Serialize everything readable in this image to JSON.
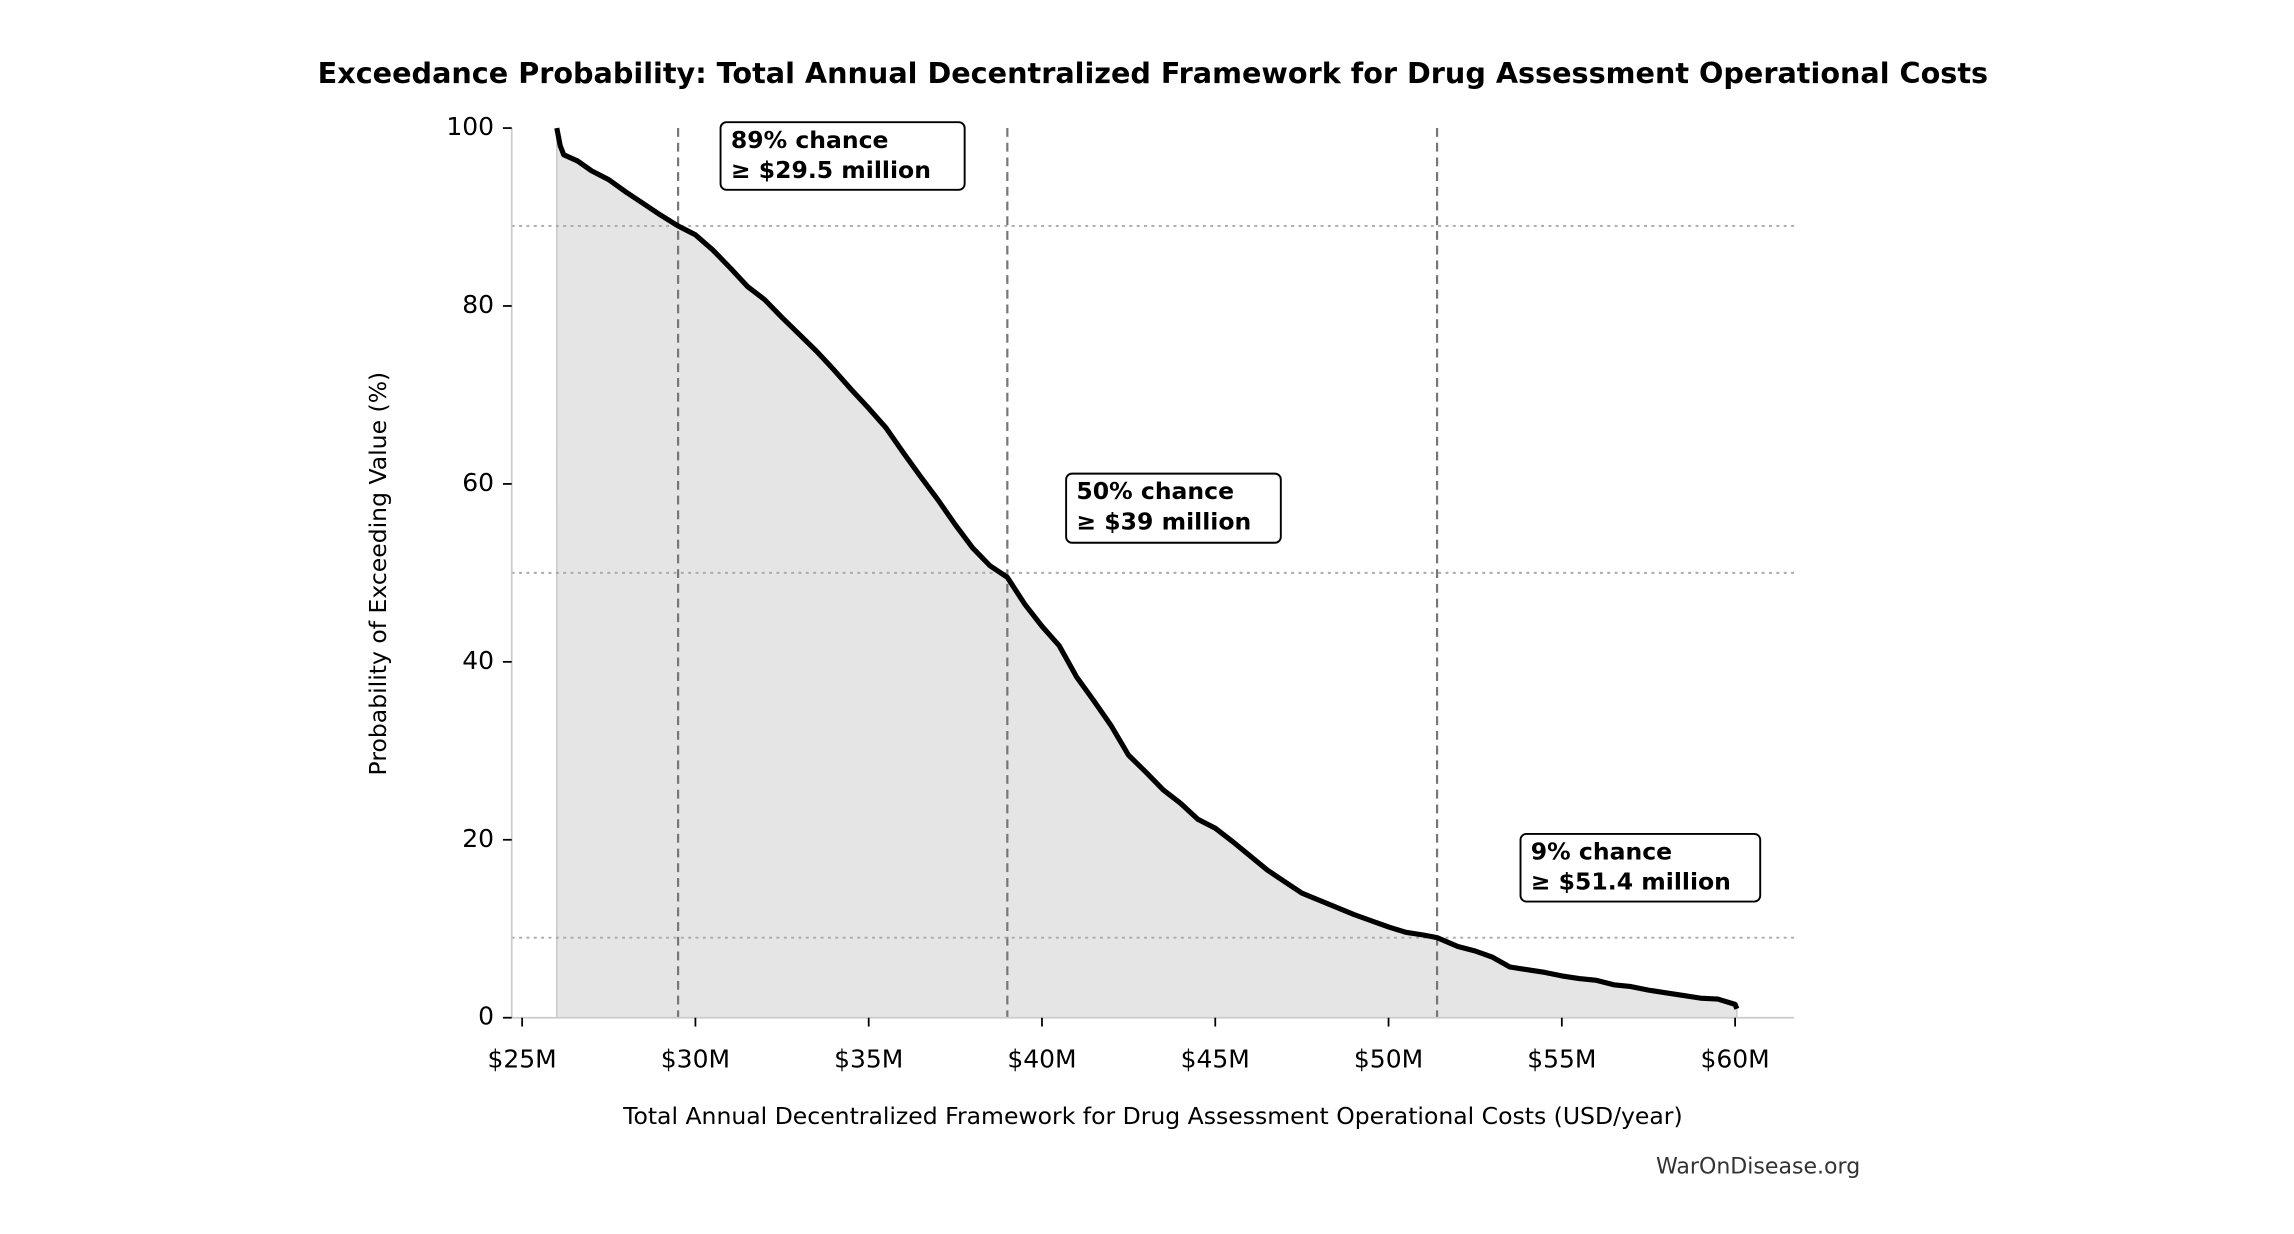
{
  "chart_data": {
    "type": "area-line",
    "title": "Exceedance Probability: Total Annual Decentralized Framework for Drug Assessment Operational Costs",
    "x_label": "Total Annual Decentralized Framework for Drug Assessment Operational Costs (USD/year)",
    "y_label": "Probability of Exceeding Value (%)",
    "source": "WarOnDisease.org",
    "color": "#000000",
    "fill_color": "#e5e5e5",
    "xlim": [
      24700000,
      61700000
    ],
    "ylim": [
      0,
      100
    ],
    "xticks": [
      {
        "value": 25000000,
        "label": "$25M"
      },
      {
        "value": 30000000,
        "label": "$30M"
      },
      {
        "value": 35000000,
        "label": "$35M"
      },
      {
        "value": 40000000,
        "label": "$40M"
      },
      {
        "value": 45000000,
        "label": "$45M"
      },
      {
        "value": 50000000,
        "label": "$50M"
      },
      {
        "value": 55000000,
        "label": "$55M"
      },
      {
        "value": 60000000,
        "label": "$60M"
      }
    ],
    "yticks": [
      0,
      20,
      40,
      60,
      80,
      100
    ],
    "x": [
      26000000,
      26100000,
      26200000,
      26600000,
      27000000,
      27500000,
      28000000,
      28500000,
      29000000,
      29500000,
      30000000,
      30500000,
      31000000,
      31500000,
      32000000,
      32500000,
      33000000,
      33500000,
      34000000,
      34500000,
      35000000,
      35500000,
      36000000,
      36500000,
      37000000,
      37500000,
      38000000,
      38500000,
      39000000,
      39500000,
      40000000,
      40500000,
      41000000,
      41500000,
      42000000,
      42500000,
      43000000,
      43500000,
      44000000,
      44500000,
      45000000,
      45500000,
      46000000,
      46500000,
      47000000,
      47500000,
      48000000,
      48500000,
      49000000,
      49500000,
      50000000,
      50500000,
      51000000,
      51400000,
      52000000,
      52500000,
      53000000,
      53500000,
      54000000,
      54500000,
      55000000,
      55500000,
      56000000,
      56500000,
      57000000,
      57500000,
      58000000,
      58500000,
      59000000,
      59500000,
      60000000,
      60050000
    ],
    "values": [
      100,
      98,
      97,
      96.3,
      95.2,
      94.2,
      92.8,
      91.5,
      90.2,
      89,
      88,
      86.3,
      84.3,
      82.2,
      80.7,
      78.7,
      76.8,
      74.9,
      72.8,
      70.6,
      68.5,
      66.3,
      63.5,
      60.8,
      58.2,
      55.4,
      52.8,
      50.8,
      49.5,
      46.5,
      44,
      41.8,
      38.3,
      35.6,
      32.8,
      29.5,
      27.6,
      25.6,
      24.1,
      22.3,
      21.3,
      19.8,
      18.2,
      16.6,
      15.3,
      14,
      13.2,
      12.4,
      11.6,
      10.9,
      10.2,
      9.6,
      9.3,
      9,
      8,
      7.5,
      6.8,
      5.7,
      5.4,
      5.1,
      4.7,
      4.4,
      4.2,
      3.7,
      3.5,
      3.1,
      2.8,
      2.5,
      2.2,
      2.1,
      1.5,
      1.0
    ],
    "markers": [
      {
        "x": 29500000,
        "y": 89,
        "label": [
          "89% chance",
          "≥ $29.5 million"
        ]
      },
      {
        "x": 39000000,
        "y": 50,
        "label": [
          "50% chance",
          "≥ $39 million"
        ]
      },
      {
        "x": 51400000,
        "y": 9,
        "label": [
          "9% chance",
          "≥ $51.4 million"
        ]
      }
    ]
  }
}
